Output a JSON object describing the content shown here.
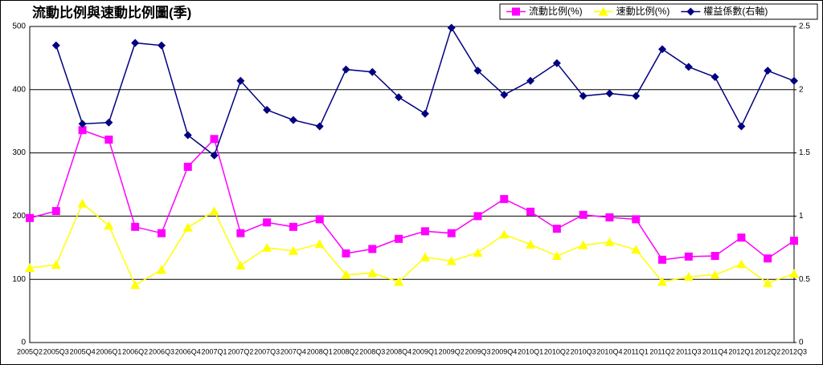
{
  "chart_data": {
    "type": "line",
    "title": "流動比例與速動比例圖(季)",
    "categories": [
      "2005Q2",
      "2005Q3",
      "2005Q4",
      "2006Q1",
      "2006Q2",
      "2006Q3",
      "2006Q4",
      "2007Q1",
      "2007Q2",
      "2007Q3",
      "2007Q4",
      "2008Q1",
      "2008Q2",
      "2008Q3",
      "2008Q4",
      "2009Q1",
      "2009Q2",
      "2009Q3",
      "2009Q4",
      "2010Q1",
      "2010Q2",
      "2010Q3",
      "2010Q4",
      "2011Q1",
      "2011Q2",
      "2011Q3",
      "2011Q4",
      "2012Q1",
      "2012Q2",
      "2012Q3"
    ],
    "series": [
      {
        "name": "流動比例(%)",
        "color": "#ff00ff",
        "marker": "square",
        "values": [
          197,
          208,
          336,
          321,
          183,
          173,
          278,
          322,
          173,
          190,
          183,
          195,
          141,
          148,
          164,
          176,
          173,
          200,
          227,
          207,
          180,
          202,
          198,
          195,
          131,
          136,
          137,
          166,
          133,
          161
        ]
      },
      {
        "name": "速動比例(%)",
        "color": "#ffff00",
        "marker": "triangle",
        "values": [
          118,
          123,
          220,
          185,
          91,
          115,
          182,
          208,
          122,
          150,
          145,
          156,
          107,
          110,
          96,
          135,
          129,
          142,
          171,
          155,
          137,
          154,
          159,
          147,
          96,
          104,
          107,
          124,
          94,
          109
        ]
      },
      {
        "name": "權益係數(右軸)",
        "color": "#000080",
        "marker": "diamond",
        "axis": "y2",
        "values": [
          null,
          2.35,
          1.73,
          1.74,
          2.37,
          2.35,
          1.64,
          1.48,
          2.07,
          1.84,
          1.76,
          1.71,
          2.16,
          2.14,
          1.94,
          1.81,
          2.49,
          2.15,
          1.96,
          2.07,
          2.21,
          1.95,
          1.97,
          1.95,
          2.32,
          2.18,
          2.1,
          1.71,
          2.15,
          2.07
        ]
      }
    ],
    "ylim": [
      0,
      500
    ],
    "yticks": [
      0,
      100,
      200,
      300,
      400,
      500
    ],
    "y2lim": [
      0,
      2.5
    ],
    "y2ticks": [
      0,
      0.5,
      1,
      1.5,
      2,
      2.5
    ],
    "grid": true,
    "legend": "top-right"
  }
}
